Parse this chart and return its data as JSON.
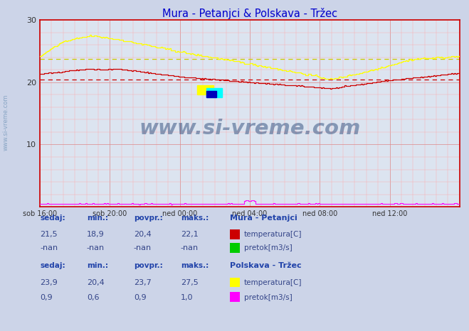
{
  "title": "Mura - Petanjci & Polskava - Tržec",
  "title_color": "#0000cc",
  "bg_color": "#ccd4e8",
  "plot_bg_color": "#dce4f0",
  "xlim": [
    0,
    288
  ],
  "ylim": [
    0,
    30
  ],
  "yticks": [
    0,
    10,
    20,
    30
  ],
  "xtick_labels": [
    "sob 16:00",
    "sob 20:00",
    "ned 00:00",
    "ned 04:00",
    "ned 08:00",
    "ned 12:00"
  ],
  "xtick_positions": [
    0,
    48,
    96,
    144,
    192,
    240
  ],
  "mura_temp_color": "#cc0000",
  "polskava_temp_color": "#ffff00",
  "pretok_mura_color": "#00cc00",
  "pretok_polskava_color": "#ff00ff",
  "mura_avg_value": 20.4,
  "polskava_avg_value": 23.7,
  "watermark_text": "www.si-vreme.com",
  "watermark_color": "#1a3a6e",
  "sidebar_text": "www.si-vreme.com"
}
